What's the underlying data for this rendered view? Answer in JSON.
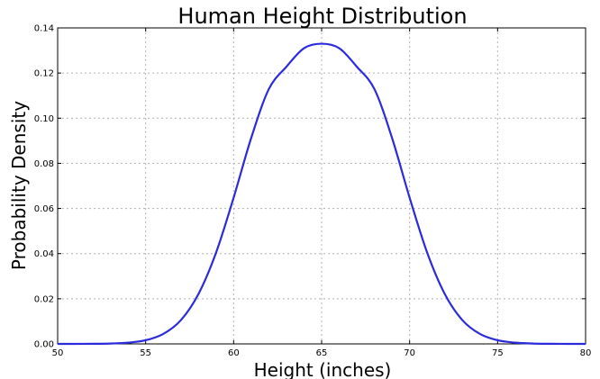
{
  "chart_data": {
    "type": "line",
    "title": "Human Height Distribution",
    "xlabel": "Height (inches)",
    "ylabel": "Probability Density",
    "xlim": [
      50,
      80
    ],
    "ylim": [
      0,
      0.14
    ],
    "xticks": [
      "50",
      "55",
      "60",
      "65",
      "70",
      "75",
      "80"
    ],
    "yticks": [
      "0.00",
      "0.02",
      "0.04",
      "0.06",
      "0.08",
      "0.10",
      "0.12",
      "0.14"
    ],
    "grid": true,
    "legend": "none",
    "series": [
      {
        "color": "#2b2bdc",
        "x": [
          50,
          51,
          52,
          53,
          54,
          55,
          56,
          57,
          58,
          59,
          60,
          61,
          62,
          63,
          64,
          65,
          66,
          67,
          68,
          69,
          70,
          71,
          72,
          73,
          74,
          75,
          76,
          77,
          78,
          79,
          80
        ],
        "y": [
          0.0,
          1e-05,
          4e-05,
          0.00016,
          0.00054,
          0.0016,
          0.0044,
          0.0105,
          0.0221,
          0.0404,
          0.0648,
          0.0913,
          0.1129,
          0.1228,
          0.131,
          0.133,
          0.131,
          0.1228,
          0.1129,
          0.0913,
          0.0648,
          0.0404,
          0.0221,
          0.0105,
          0.0044,
          0.0016,
          0.00054,
          0.00016,
          4e-05,
          1e-05,
          0.0
        ]
      }
    ]
  }
}
